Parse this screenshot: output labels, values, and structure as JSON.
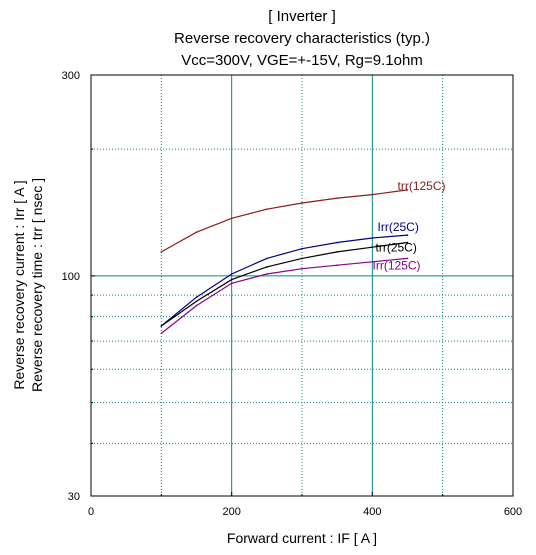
{
  "chart_data": {
    "type": "line",
    "title_lines": [
      "[ Inverter ]",
      "Reverse recovery characteristics  (typ.)",
      "Vcc=300V, VGE=+-15V, Rg=9.1ohm"
    ],
    "xlabel": "Forward current  :  IF  [ A ]",
    "ylabel_lines": [
      "Reverse recovery current  :  Irr  [ A ]",
      "Reverse recovery time  :  trr  [ nsec ]"
    ],
    "xlim": [
      0,
      600
    ],
    "ylim": [
      30,
      300
    ],
    "y_scale": "log",
    "x_ticks": [
      0,
      200,
      400,
      600
    ],
    "x_tick_labels": [
      "0",
      "200",
      "400",
      "600"
    ],
    "y_ticks": [
      30,
      100,
      300
    ],
    "y_tick_labels": [
      "30",
      "100",
      "300"
    ],
    "x_major_grid": [
      200,
      400
    ],
    "x_minor_grid": [
      100,
      300,
      500
    ],
    "y_major_grid": [
      100
    ],
    "y_minor_grid": [
      40,
      50,
      60,
      70,
      80,
      90,
      200
    ],
    "grid": true,
    "series": [
      {
        "name": "trr(125C)",
        "color": "#8b1a1a",
        "x": [
          100,
          150,
          200,
          250,
          300,
          350,
          400,
          450
        ],
        "y": [
          114,
          127,
          137,
          144,
          149,
          153,
          156,
          160
        ]
      },
      {
        "name": "Irr(25C)",
        "color": "#00008b",
        "x": [
          100,
          150,
          200,
          250,
          300,
          350,
          400,
          450
        ],
        "y": [
          76,
          89,
          101,
          110,
          116,
          120,
          123,
          125
        ]
      },
      {
        "name": "trr(25C)",
        "color": "#000000",
        "x": [
          100,
          150,
          200,
          250,
          300,
          350,
          400,
          450
        ],
        "y": [
          76,
          87,
          98,
          105,
          110,
          114,
          117,
          120
        ]
      },
      {
        "name": "Irr(125C)",
        "color": "#8b008b",
        "x": [
          100,
          150,
          200,
          250,
          300,
          350,
          400,
          450
        ],
        "y": [
          73,
          85,
          96,
          101,
          104,
          106,
          108,
          110
        ]
      }
    ]
  }
}
